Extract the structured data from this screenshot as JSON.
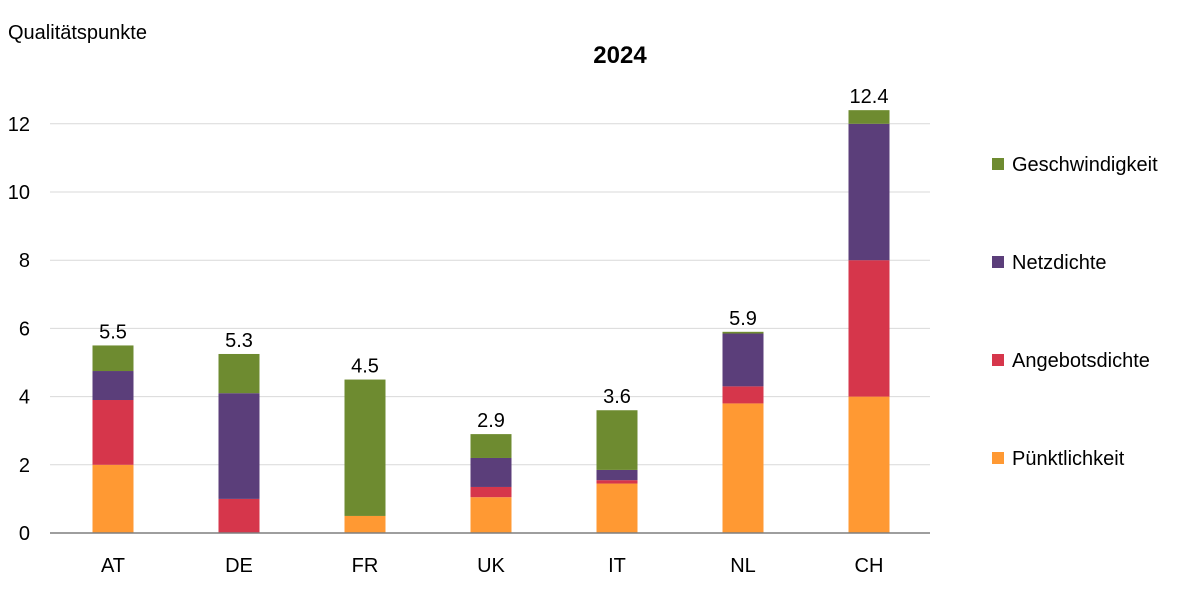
{
  "chart_data": {
    "type": "bar",
    "stacked": true,
    "title": "2024",
    "ylabel": "Qualitätspunkte",
    "xlabel": "",
    "ylim": [
      0,
      13
    ],
    "yticks": [
      0,
      2,
      4,
      6,
      8,
      10,
      12
    ],
    "grid": true,
    "legend_position": "right",
    "categories": [
      "AT",
      "DE",
      "FR",
      "UK",
      "IT",
      "NL",
      "CH"
    ],
    "series": [
      {
        "name": "Pünktlichkeit",
        "color": "#FF9933",
        "values": [
          2.0,
          0.0,
          0.5,
          1.05,
          1.45,
          3.8,
          4.0
        ]
      },
      {
        "name": "Angebotsdichte",
        "color": "#D6364B",
        "values": [
          1.9,
          1.0,
          0.0,
          0.3,
          0.1,
          0.5,
          4.0
        ]
      },
      {
        "name": "Netzdichte",
        "color": "#5B3E7A",
        "values": [
          0.85,
          3.1,
          0.0,
          0.85,
          0.3,
          1.55,
          4.0
        ]
      },
      {
        "name": "Geschwindigkeit",
        "color": "#6E8B30",
        "values": [
          0.75,
          1.15,
          4.0,
          0.7,
          1.75,
          0.05,
          0.4
        ]
      }
    ],
    "totals": [
      "5.5",
      "5.3",
      "4.5",
      "2.9",
      "3.6",
      "5.9",
      "12.4"
    ],
    "legend_order": [
      "Geschwindigkeit",
      "Netzdichte",
      "Angebotsdichte",
      "Pünktlichkeit"
    ]
  }
}
